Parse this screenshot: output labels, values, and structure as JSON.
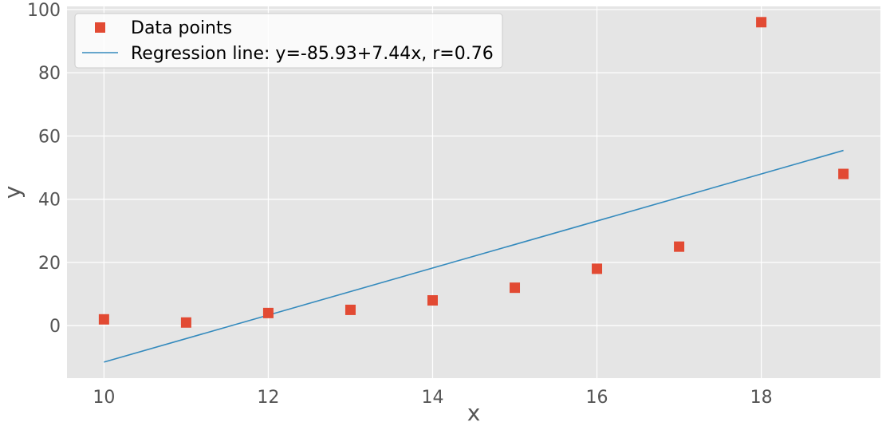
{
  "chart_data": {
    "type": "scatter",
    "title": "",
    "xlabel": "x",
    "ylabel": "y",
    "xlim": [
      9.55,
      19.45
    ],
    "ylim": [
      -16.6,
      101
    ],
    "x_ticks": [
      10,
      12,
      14,
      16,
      18
    ],
    "y_ticks": [
      0,
      20,
      40,
      60,
      80,
      100
    ],
    "grid": true,
    "legend_position": "top-left",
    "series": [
      {
        "name": "Data points",
        "kind": "scatter",
        "marker": "square",
        "color": "#e24a33",
        "x": [
          10,
          11,
          12,
          13,
          14,
          15,
          16,
          17,
          18,
          19
        ],
        "y": [
          2,
          1,
          4,
          5,
          8,
          12,
          18,
          25,
          96,
          48
        ]
      },
      {
        "name": "Regression line: y=-85.93+7.44x, r=0.76",
        "kind": "line",
        "color": "#348abd",
        "intercept": -85.93,
        "slope": 7.44,
        "x_range": [
          10,
          19
        ]
      }
    ]
  },
  "colors": {
    "plot_background": "#e5e5e5",
    "grid": "#ffffff",
    "tick_text": "#555555"
  }
}
